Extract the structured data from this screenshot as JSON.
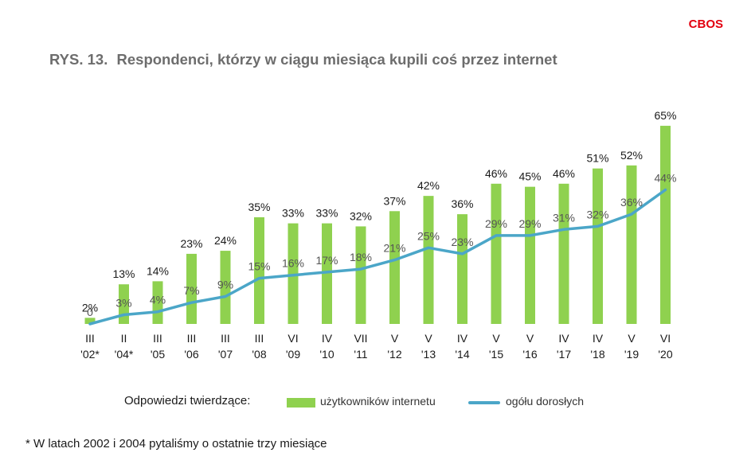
{
  "brand": "CBOS",
  "title": {
    "number": "RYS. 13.",
    "text": "Respondenci, którzy w ciągu miesiąca kupili coś przez internet"
  },
  "legend": {
    "prefix": "Odpowiedzi twierdzące:",
    "bar_label": "użytkowników internetu",
    "line_label": "ogółu dorosłych"
  },
  "footnote": "* W latach 2002 i 2004 pytaliśmy o ostatnie trzy miesiące",
  "colors": {
    "bars": "#8fd14f",
    "line": "#4ba6c8",
    "brand": "#e3000f"
  },
  "chart_data": {
    "type": "bar",
    "categories": [
      {
        "month": "III",
        "year": "'02*"
      },
      {
        "month": "II",
        "year": "'04*"
      },
      {
        "month": "III",
        "year": "'05"
      },
      {
        "month": "III",
        "year": "'06"
      },
      {
        "month": "III",
        "year": "'07"
      },
      {
        "month": "III",
        "year": "'08"
      },
      {
        "month": "VI",
        "year": "'09"
      },
      {
        "month": "IV",
        "year": "'10"
      },
      {
        "month": "VII",
        "year": "'11"
      },
      {
        "month": "V",
        "year": "'12"
      },
      {
        "month": "V",
        "year": "'13"
      },
      {
        "month": "IV",
        "year": "'14"
      },
      {
        "month": "V",
        "year": "'15"
      },
      {
        "month": "V",
        "year": "'16"
      },
      {
        "month": "IV",
        "year": "'17"
      },
      {
        "month": "IV",
        "year": "'18"
      },
      {
        "month": "V",
        "year": "'19"
      },
      {
        "month": "VI",
        "year": "'20"
      }
    ],
    "series": [
      {
        "name": "użytkowników internetu",
        "type": "bar",
        "values": [
          2,
          13,
          14,
          23,
          24,
          35,
          33,
          33,
          32,
          37,
          42,
          36,
          46,
          45,
          46,
          51,
          52,
          65
        ],
        "labels": [
          "2%",
          "13%",
          "14%",
          "23%",
          "24%",
          "35%",
          "33%",
          "33%",
          "32%",
          "37%",
          "42%",
          "36%",
          "46%",
          "45%",
          "46%",
          "51%",
          "52%",
          "65%"
        ]
      },
      {
        "name": "ogółu dorosłych",
        "type": "line",
        "values": [
          0,
          3,
          4,
          7,
          9,
          15,
          16,
          17,
          18,
          21,
          25,
          23,
          29,
          29,
          31,
          32,
          36,
          44
        ],
        "labels": [
          "0",
          "3%",
          "4%",
          "7%",
          "9%",
          "15%",
          "16%",
          "17%",
          "18%",
          "21%",
          "25%",
          "23%",
          "29%",
          "29%",
          "31%",
          "32%",
          "36%",
          "44%"
        ]
      }
    ],
    "ylim": [
      0,
      65
    ]
  }
}
